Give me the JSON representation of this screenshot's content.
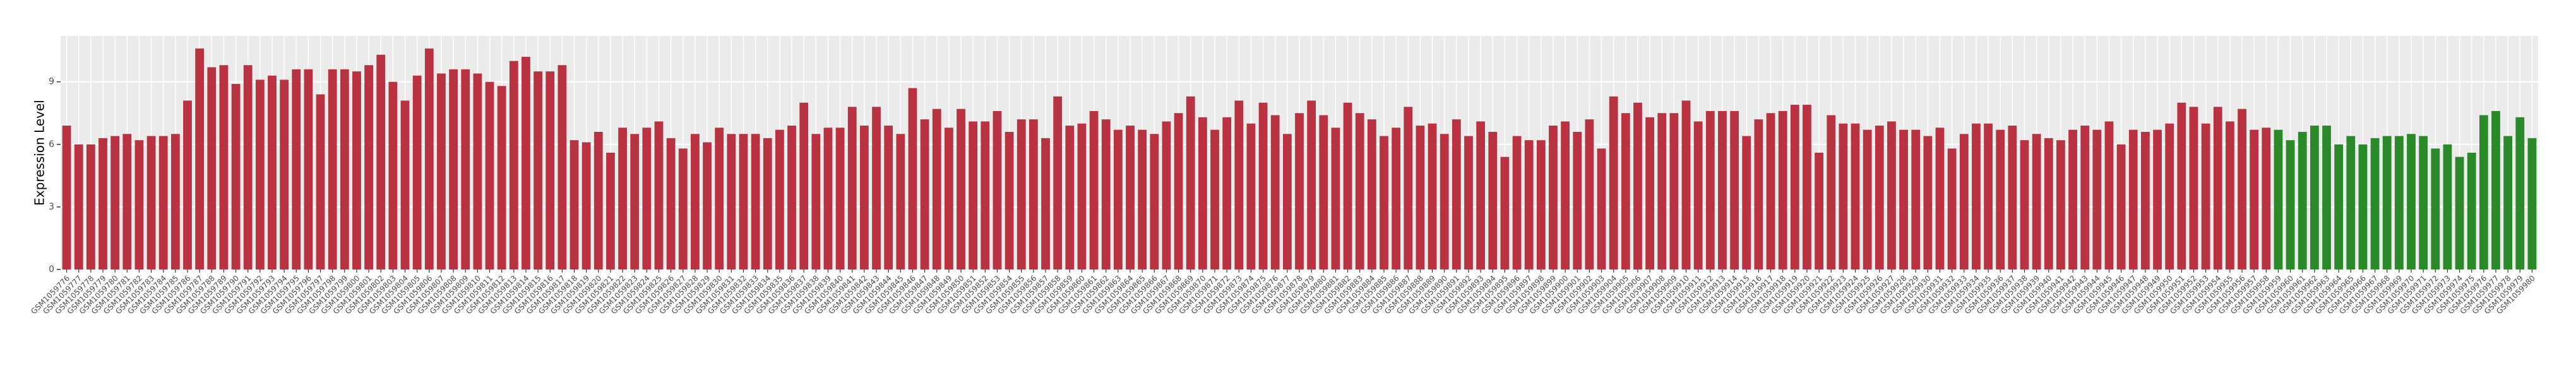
{
  "chart_data": {
    "type": "bar",
    "y_label": "Expression Level",
    "categories": [
      "GSM1059776",
      "GSM1059777",
      "GSM1059778",
      "GSM1059779",
      "GSM1059780",
      "GSM1059781",
      "GSM1059782",
      "GSM1059783",
      "GSM1059784",
      "GSM1059785",
      "GSM1059786",
      "GSM1059787",
      "GSM1059788",
      "GSM1059789",
      "GSM1059790",
      "GSM1059791",
      "GSM1059792",
      "GSM1059793",
      "GSM1059794",
      "GSM1059795",
      "GSM1059796",
      "GSM1059797",
      "GSM1059798",
      "GSM1059799",
      "GSM1059800",
      "GSM1059801",
      "GSM1059802",
      "GSM1059803",
      "GSM1059804",
      "GSM1059805",
      "GSM1059806",
      "GSM1059807",
      "GSM1059808",
      "GSM1059809",
      "GSM1059810",
      "GSM1059811",
      "GSM1059812",
      "GSM1059813",
      "GSM1059814",
      "GSM1059815",
      "GSM1059816",
      "GSM1059817",
      "GSM1059818",
      "GSM1059819",
      "GSM1059820",
      "GSM1059821",
      "GSM1059822",
      "GSM1059823",
      "GSM1059824",
      "GSM1059825",
      "GSM1059826",
      "GSM1059827",
      "GSM1059828",
      "GSM1059829",
      "GSM1059830",
      "GSM1059831",
      "GSM1059832",
      "GSM1059833",
      "GSM1059834",
      "GSM1059835",
      "GSM1059836",
      "GSM1059837",
      "GSM1059838",
      "GSM1059839",
      "GSM1059840",
      "GSM1059841",
      "GSM1059842",
      "GSM1059843",
      "GSM1059844",
      "GSM1059845",
      "GSM1059846",
      "GSM1059847",
      "GSM1059848",
      "GSM1059849",
      "GSM1059850",
      "GSM1059851",
      "GSM1059852",
      "GSM1059853",
      "GSM1059854",
      "GSM1059855",
      "GSM1059856",
      "GSM1059857",
      "GSM1059858",
      "GSM1059859",
      "GSM1059860",
      "GSM1059861",
      "GSM1059862",
      "GSM1059863",
      "GSM1059864",
      "GSM1059865",
      "GSM1059866",
      "GSM1059867",
      "GSM1059868",
      "GSM1059869",
      "GSM1059870",
      "GSM1059871",
      "GSM1059872",
      "GSM1059873",
      "GSM1059874",
      "GSM1059875",
      "GSM1059876",
      "GSM1059877",
      "GSM1059878",
      "GSM1059879",
      "GSM1059880",
      "GSM1059881",
      "GSM1059882",
      "GSM1059883",
      "GSM1059884",
      "GSM1059885",
      "GSM1059886",
      "GSM1059887",
      "GSM1059888",
      "GSM1059889",
      "GSM1059890",
      "GSM1059891",
      "GSM1059892",
      "GSM1059893",
      "GSM1059894",
      "GSM1059895",
      "GSM1059896",
      "GSM1059897",
      "GSM1059898",
      "GSM1059899",
      "GSM1059900",
      "GSM1059901",
      "GSM1059902",
      "GSM1059903",
      "GSM1059904",
      "GSM1059905",
      "GSM1059906",
      "GSM1059907",
      "GSM1059908",
      "GSM1059909",
      "GSM1059910",
      "GSM1059911",
      "GSM1059912",
      "GSM1059913",
      "GSM1059914",
      "GSM1059915",
      "GSM1059916",
      "GSM1059917",
      "GSM1059918",
      "GSM1059919",
      "GSM1059920",
      "GSM1059921",
      "GSM1059922",
      "GSM1059923",
      "GSM1059924",
      "GSM1059925",
      "GSM1059926",
      "GSM1059927",
      "GSM1059928",
      "GSM1059929",
      "GSM1059930",
      "GSM1059931",
      "GSM1059932",
      "GSM1059933",
      "GSM1059934",
      "GSM1059935",
      "GSM1059936",
      "GSM1059937",
      "GSM1059938",
      "GSM1059939",
      "GSM1059940",
      "GSM1059941",
      "GSM1059942",
      "GSM1059943",
      "GSM1059944",
      "GSM1059945",
      "GSM1059946",
      "GSM1059947",
      "GSM1059948",
      "GSM1059949",
      "GSM1059950",
      "GSM1059951",
      "GSM1059952",
      "GSM1059953",
      "GSM1059954",
      "GSM1059955",
      "GSM1059956",
      "GSM1059957",
      "GSM1059958",
      "GSM1059959",
      "GSM1059960",
      "GSM1059961",
      "GSM1059962",
      "GSM1059963",
      "GSM1059964",
      "GSM1059965",
      "GSM1059966",
      "GSM1059967",
      "GSM1059968",
      "GSM1059969",
      "GSM1059970",
      "GSM1059971",
      "GSM1059972",
      "GSM1059973",
      "GSM1059974",
      "GSM1059975",
      "GSM1059976",
      "GSM1059977",
      "GSM1059978",
      "GSM1059979",
      "GSM1059980"
    ],
    "values": [
      6.9,
      6.0,
      6.0,
      6.3,
      6.4,
      6.5,
      6.2,
      6.4,
      6.4,
      6.5,
      8.1,
      10.6,
      9.7,
      9.8,
      8.9,
      9.8,
      9.1,
      9.3,
      9.1,
      9.6,
      9.6,
      8.4,
      9.6,
      9.6,
      9.5,
      9.8,
      10.3,
      9.0,
      8.1,
      9.3,
      10.6,
      9.4,
      9.6,
      9.6,
      9.4,
      9.0,
      8.8,
      10.0,
      10.2,
      9.5,
      9.5,
      9.8,
      6.2,
      6.1,
      6.6,
      5.6,
      6.8,
      6.5,
      6.8,
      7.1,
      6.3,
      5.8,
      6.5,
      6.1,
      6.8,
      6.5,
      6.5,
      6.5,
      6.3,
      6.7,
      6.9,
      8.0,
      6.5,
      6.8,
      6.8,
      7.8,
      6.9,
      7.8,
      6.9,
      6.5,
      8.7,
      7.2,
      7.7,
      6.8,
      7.7,
      7.1,
      7.1,
      7.6,
      6.6,
      7.2,
      7.2,
      6.3,
      8.3,
      6.9,
      7.0,
      7.6,
      7.2,
      6.7,
      6.9,
      6.7,
      6.5,
      7.1,
      7.5,
      8.3,
      7.3,
      6.7,
      7.3,
      8.1,
      7.0,
      8.0,
      7.4,
      6.5,
      7.5,
      8.1,
      7.4,
      6.8,
      8.0,
      7.5,
      7.2,
      6.4,
      6.8,
      7.8,
      6.9,
      7.0,
      6.5,
      7.2,
      6.4,
      7.1,
      6.6,
      5.4,
      6.4,
      6.2,
      6.2,
      6.9,
      7.1,
      6.6,
      7.2,
      5.8,
      8.3,
      7.5,
      8.0,
      7.3,
      7.5,
      7.5,
      8.1,
      7.1,
      7.6,
      7.6,
      7.6,
      6.4,
      7.2,
      7.5,
      7.6,
      7.9,
      7.9,
      5.6,
      7.4,
      7.0,
      7.0,
      6.7,
      6.9,
      7.1,
      6.7,
      6.7,
      6.4,
      6.8,
      5.8,
      6.5,
      7.0,
      7.0,
      6.7,
      6.9,
      6.2,
      6.5,
      6.3,
      6.2,
      6.7,
      6.9,
      6.7,
      7.1,
      6.0,
      6.7,
      6.6,
      6.7,
      7.0,
      8.0,
      7.8,
      7.0,
      7.8,
      7.1,
      7.7,
      6.7,
      6.8,
      6.7,
      6.2,
      6.6,
      6.9,
      6.9,
      6.0,
      6.4,
      6.0,
      6.3,
      6.4,
      6.4,
      6.5,
      6.4,
      5.8,
      6.0,
      5.4,
      5.6,
      7.4,
      7.6,
      6.4,
      7.3,
      6.3
    ],
    "colors": [
      "#b83242",
      "#b83242",
      "#b83242",
      "#b83242",
      "#b83242",
      "#b83242",
      "#b83242",
      "#b83242",
      "#b83242",
      "#b83242",
      "#b83242",
      "#b83242",
      "#b83242",
      "#b83242",
      "#b83242",
      "#b83242",
      "#b83242",
      "#b83242",
      "#b83242",
      "#b83242",
      "#b83242",
      "#b83242",
      "#b83242",
      "#b83242",
      "#b83242",
      "#b83242",
      "#b83242",
      "#b83242",
      "#b83242",
      "#b83242",
      "#b83242",
      "#b83242",
      "#b83242",
      "#b83242",
      "#b83242",
      "#b83242",
      "#b83242",
      "#b83242",
      "#b83242",
      "#b83242",
      "#b83242",
      "#b83242",
      "#b83242",
      "#b83242",
      "#b83242",
      "#b83242",
      "#b83242",
      "#b83242",
      "#b83242",
      "#b83242",
      "#b83242",
      "#b83242",
      "#b83242",
      "#b83242",
      "#b83242",
      "#b83242",
      "#b83242",
      "#b83242",
      "#b83242",
      "#b83242",
      "#b83242",
      "#b83242",
      "#b83242",
      "#b83242",
      "#b83242",
      "#b83242",
      "#b83242",
      "#b83242",
      "#b83242",
      "#b83242",
      "#b83242",
      "#b83242",
      "#b83242",
      "#b83242",
      "#b83242",
      "#b83242",
      "#b83242",
      "#b83242",
      "#b83242",
      "#b83242",
      "#b83242",
      "#b83242",
      "#b83242",
      "#b83242",
      "#b83242",
      "#b83242",
      "#b83242",
      "#b83242",
      "#b83242",
      "#b83242",
      "#b83242",
      "#b83242",
      "#b83242",
      "#b83242",
      "#b83242",
      "#b83242",
      "#b83242",
      "#b83242",
      "#b83242",
      "#b83242",
      "#b83242",
      "#b83242",
      "#b83242",
      "#b83242",
      "#b83242",
      "#b83242",
      "#b83242",
      "#b83242",
      "#b83242",
      "#b83242",
      "#b83242",
      "#b83242",
      "#b83242",
      "#b83242",
      "#b83242",
      "#b83242",
      "#b83242",
      "#b83242",
      "#b83242",
      "#b83242",
      "#b83242",
      "#b83242",
      "#b83242",
      "#b83242",
      "#b83242",
      "#b83242",
      "#b83242",
      "#b83242",
      "#b83242",
      "#b83242",
      "#b83242",
      "#b83242",
      "#b83242",
      "#b83242",
      "#b83242",
      "#b83242",
      "#b83242",
      "#b83242",
      "#b83242",
      "#b83242",
      "#b83242",
      "#b83242",
      "#b83242",
      "#b83242",
      "#b83242",
      "#b83242",
      "#b83242",
      "#b83242",
      "#b83242",
      "#b83242",
      "#b83242",
      "#b83242",
      "#b83242",
      "#b83242",
      "#b83242",
      "#b83242",
      "#b83242",
      "#b83242",
      "#b83242",
      "#b83242",
      "#b83242",
      "#b83242",
      "#b83242",
      "#b83242",
      "#b83242",
      "#b83242",
      "#b83242",
      "#b83242",
      "#b83242",
      "#b83242",
      "#b83242",
      "#b83242",
      "#b83242",
      "#b83242",
      "#b83242",
      "#b83242",
      "#b83242",
      "#b83242",
      "#b83242",
      "#b83242",
      "#b83242",
      "#b83242",
      "#b83242",
      "#2a8a2a",
      "#2a8a2a",
      "#2a8a2a",
      "#2a8a2a",
      "#2a8a2a",
      "#2a8a2a",
      "#2a8a2a",
      "#2a8a2a",
      "#2a8a2a",
      "#2a8a2a",
      "#2a8a2a",
      "#2a8a2a",
      "#2a8a2a",
      "#2a8a2a",
      "#2a8a2a",
      "#2a8a2a",
      "#2a8a2a",
      "#2a8a2a",
      "#2a8a2a",
      "#2a8a2a",
      "#2a8a2a",
      "#2a8a2a"
    ],
    "ylim": [
      0,
      11.2
    ],
    "yticks": [
      0,
      3,
      6,
      9
    ],
    "grid": true
  }
}
